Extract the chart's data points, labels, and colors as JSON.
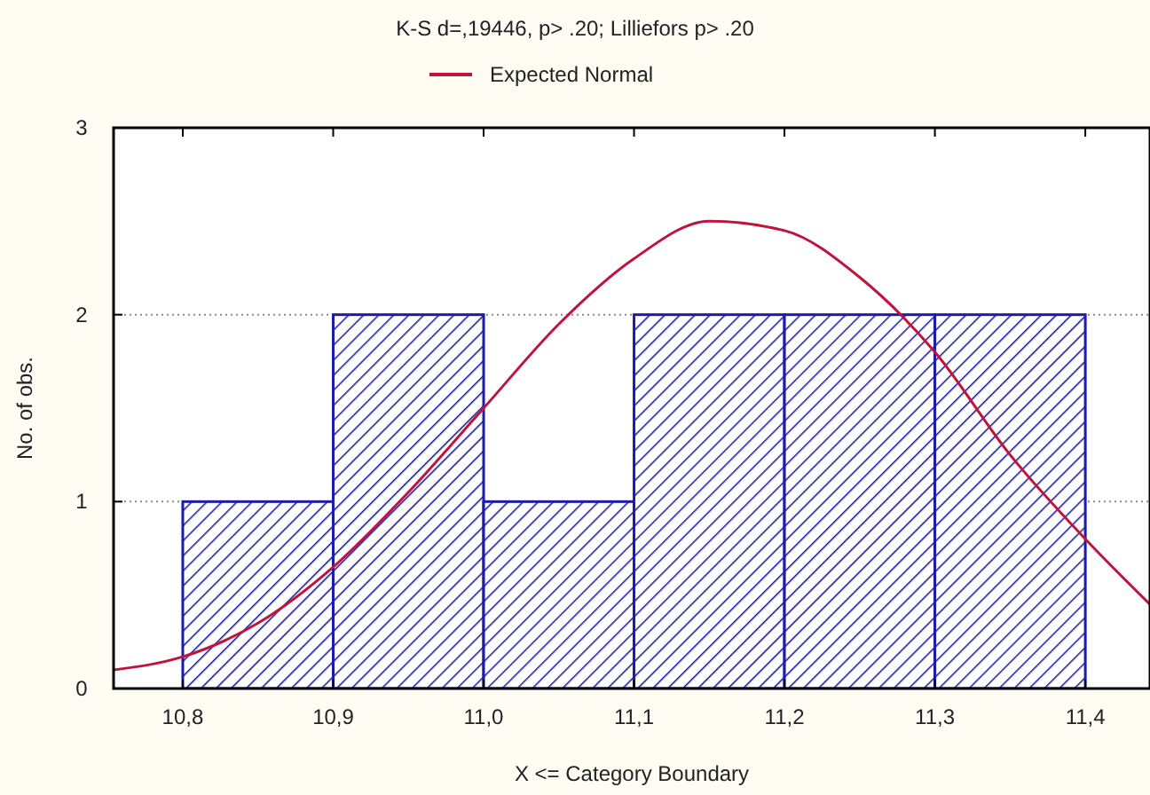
{
  "chart_data": {
    "type": "histogram",
    "title": "K-S d=,19446, p> .20; Lilliefors p> .20",
    "xlabel": "X <= Category Boundary",
    "ylabel": "No. of obs.",
    "bins": [
      10.8,
      10.9,
      11.0,
      11.1,
      11.2,
      11.3,
      11.4
    ],
    "values": [
      1,
      2,
      1,
      2,
      2,
      2
    ],
    "color": "#1c1ca8",
    "series": [
      {
        "type": "line",
        "name": "Expected Normal",
        "color": "#c0143c",
        "x": [
          10.754,
          10.8,
          10.85,
          10.9,
          10.95,
          11.0,
          11.05,
          11.1,
          11.15,
          11.2,
          11.25,
          11.3,
          11.35,
          11.4,
          11.443
        ],
        "values": [
          0.1,
          0.17,
          0.35,
          0.65,
          1.05,
          1.5,
          1.95,
          2.3,
          2.5,
          2.45,
          2.2,
          1.8,
          1.25,
          0.8,
          0.45
        ]
      }
    ],
    "xlim": [
      10.754,
      11.443
    ],
    "ylim": [
      0,
      3
    ],
    "xticks": [
      {
        "value": 10.8,
        "label": "10,8"
      },
      {
        "value": 10.9,
        "label": "10,9"
      },
      {
        "value": 11.0,
        "label": "11,0"
      },
      {
        "value": 11.1,
        "label": "11,1"
      },
      {
        "value": 11.2,
        "label": "11,2"
      },
      {
        "value": 11.3,
        "label": "11,3"
      },
      {
        "value": 11.4,
        "label": "11,4"
      }
    ],
    "yticks": [
      0,
      1,
      2,
      3
    ],
    "grid": "y",
    "legend": "top"
  }
}
